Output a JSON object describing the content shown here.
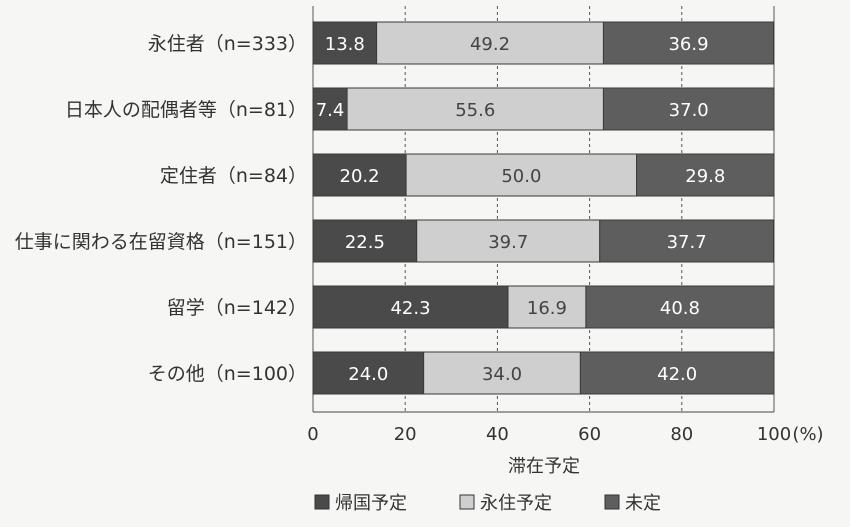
{
  "chart_data": {
    "type": "bar",
    "orientation": "horizontal",
    "stacked": true,
    "categories": [
      "永住者（n=333）",
      "日本人の配偶者等（n=81）",
      "定住者（n=84）",
      "仕事に関わる在留資格（n=151）",
      "留学（n=142）",
      "その他（n=100）"
    ],
    "series": [
      {
        "name": "帰国予定",
        "color": "#4a4a4a",
        "label_color": "#ffffff",
        "values": [
          13.8,
          7.4,
          20.2,
          22.5,
          42.3,
          24.0
        ]
      },
      {
        "name": "永住予定",
        "color": "#cfcfcf",
        "label_color": "#444444",
        "values": [
          49.2,
          55.6,
          50.0,
          39.7,
          16.9,
          34.0
        ]
      },
      {
        "name": "未定",
        "color": "#5e5e5e",
        "label_color": "#ffffff",
        "values": [
          36.9,
          37.0,
          29.8,
          37.7,
          40.8,
          42.0
        ]
      }
    ],
    "value_labels": [
      [
        "13.8",
        "7.4",
        "20.2",
        "22.5",
        "42.3",
        "24.0"
      ],
      [
        "49.2",
        "55.6",
        "50.0",
        "39.7",
        "16.9",
        "34.0"
      ],
      [
        "36.9",
        "37.0",
        "29.8",
        "37.7",
        "40.8",
        "42.0"
      ]
    ],
    "xlabel": "滞在予定",
    "x_unit": "(%)",
    "xlim": [
      0,
      100
    ],
    "x_ticks": [
      "0",
      "20",
      "40",
      "60",
      "80",
      "100"
    ],
    "grid": "vertical-dashed",
    "legend_position": "bottom"
  }
}
